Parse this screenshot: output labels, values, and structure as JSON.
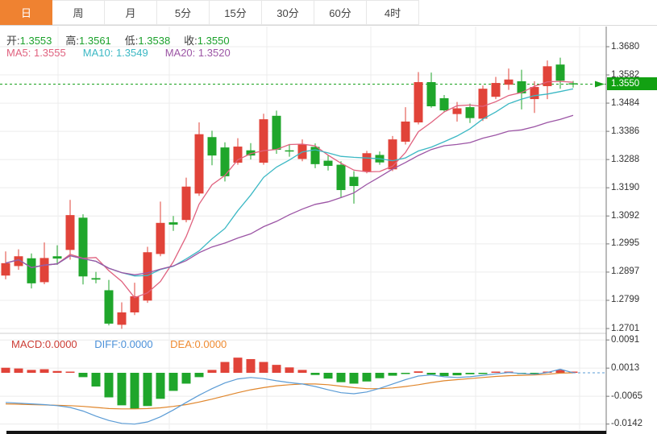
{
  "tabs": {
    "items": [
      {
        "label": "日",
        "active": true
      },
      {
        "label": "周",
        "active": false
      },
      {
        "label": "月",
        "active": false
      },
      {
        "label": "5分",
        "active": false
      },
      {
        "label": "15分",
        "active": false
      },
      {
        "label": "30分",
        "active": false
      },
      {
        "label": "60分",
        "active": false
      },
      {
        "label": "4时",
        "active": false
      }
    ]
  },
  "info_bar": {
    "open_label": "开:",
    "open": "1.3553",
    "high_label": "高:",
    "high": "1.3561",
    "low_label": "低:",
    "low": "1.3538",
    "close_label": "收:",
    "close": "1.3550",
    "ma5_label": "MA5:",
    "ma5": "1.3555",
    "ma10_label": "MA10:",
    "ma10": "1.3549",
    "ma20_label": "MA20:",
    "ma20": "1.3520"
  },
  "macd_bar": {
    "macd_label": "MACD:",
    "macd": "0.0000",
    "diff_label": "DIFF:",
    "diff": "0.0000",
    "dea_label": "DEA:",
    "dea": "0.0000"
  },
  "axis": {
    "last_price_label": "1.3550"
  },
  "colors": {
    "up": "#e14339",
    "down": "#1fa62b",
    "doji_dash": "#1fa62b",
    "ma5": "#e0627f",
    "ma10": "#3bb8c4",
    "ma20": "#9c55a5",
    "diff_line": "#5a9bd5",
    "dea_line": "#e0862c",
    "macd_text": "#cc3c34",
    "diff_text": "#4a90d9",
    "dea_text": "#ef8b31",
    "tab_active": "#ef8231",
    "price_line": "#18a11c",
    "badge": "#12a112",
    "grid": "#ececec",
    "axis_line": "#777",
    "tick_text": "#333"
  },
  "chart_data": {
    "type": "candlestick_with_macd",
    "panels": [
      "price",
      "macd"
    ],
    "price_axis": {
      "max": 1.368,
      "min": 1.2701,
      "ticks": [
        1.368,
        1.3582,
        1.3484,
        1.3386,
        1.3288,
        1.319,
        1.3092,
        1.2995,
        1.2897,
        1.2799,
        1.2701
      ]
    },
    "last_price": 1.355,
    "current_bar": {
      "open": 1.3553,
      "high": 1.3561,
      "low": 1.3538,
      "close": 1.355
    },
    "ma": {
      "periods": [
        5,
        10,
        20
      ],
      "ma5": 1.3555,
      "ma10": 1.3549,
      "ma20": 1.352
    },
    "candles": [
      [
        1.2885,
        1.2969,
        1.2872,
        1.2928
      ],
      [
        1.2918,
        1.2976,
        1.2905,
        1.2952
      ],
      [
        1.2945,
        1.2962,
        1.284,
        1.2858
      ],
      [
        1.2862,
        1.3,
        1.2855,
        1.2946
      ],
      [
        1.2952,
        1.299,
        1.2922,
        1.2944
      ],
      [
        1.2974,
        1.3148,
        1.294,
        1.3095
      ],
      [
        1.3086,
        1.3098,
        1.2854,
        1.2882
      ],
      [
        1.2876,
        1.2898,
        1.2858,
        1.2871
      ],
      [
        1.2834,
        1.287,
        1.2712,
        1.2718
      ],
      [
        1.2714,
        1.2792,
        1.27,
        1.2757
      ],
      [
        1.2757,
        1.286,
        1.2748,
        1.2813
      ],
      [
        1.2798,
        1.2985,
        1.279,
        1.2966
      ],
      [
        1.296,
        1.3142,
        1.2952,
        1.3068
      ],
      [
        1.307,
        1.3092,
        1.304,
        1.3062
      ],
      [
        1.3078,
        1.3225,
        1.307,
        1.3194
      ],
      [
        1.317,
        1.3417,
        1.3162,
        1.3376
      ],
      [
        1.3366,
        1.3388,
        1.3268,
        1.3302
      ],
      [
        1.333,
        1.3348,
        1.3212,
        1.323
      ],
      [
        1.3277,
        1.3362,
        1.327,
        1.3333
      ],
      [
        1.332,
        1.3345,
        1.3288,
        1.3302
      ],
      [
        1.3277,
        1.3447,
        1.327,
        1.3428
      ],
      [
        1.344,
        1.3458,
        1.3308,
        1.3322
      ],
      [
        1.332,
        1.3342,
        1.3298,
        1.3316
      ],
      [
        1.329,
        1.3358,
        1.3282,
        1.334
      ],
      [
        1.3332,
        1.3344,
        1.3258,
        1.3272
      ],
      [
        1.3284,
        1.3302,
        1.325,
        1.3266
      ],
      [
        1.327,
        1.3282,
        1.3155,
        1.3182
      ],
      [
        1.3228,
        1.3248,
        1.3135,
        1.3196
      ],
      [
        1.3246,
        1.3318,
        1.324,
        1.331
      ],
      [
        1.3304,
        1.3316,
        1.327,
        1.3278
      ],
      [
        1.3254,
        1.337,
        1.3248,
        1.3358
      ],
      [
        1.335,
        1.347,
        1.334,
        1.342
      ],
      [
        1.3417,
        1.3592,
        1.341,
        1.3557
      ],
      [
        1.3557,
        1.359,
        1.3468,
        1.3473
      ],
      [
        1.3501,
        1.3512,
        1.3452,
        1.3459
      ],
      [
        1.3446,
        1.3488,
        1.342,
        1.3466
      ],
      [
        1.347,
        1.3482,
        1.3415,
        1.3432
      ],
      [
        1.343,
        1.3545,
        1.3422,
        1.3534
      ],
      [
        1.3506,
        1.3575,
        1.3498,
        1.3554
      ],
      [
        1.3548,
        1.3604,
        1.353,
        1.3566
      ],
      [
        1.356,
        1.36,
        1.3462,
        1.3518
      ],
      [
        1.3498,
        1.356,
        1.345,
        1.354
      ],
      [
        1.3543,
        1.3632,
        1.3498,
        1.3612
      ],
      [
        1.3618,
        1.3642,
        1.3534,
        1.3562
      ],
      [
        1.3553,
        1.3561,
        1.3538,
        1.355
      ]
    ],
    "macd": {
      "axis_ticks": [
        0.0091,
        0.0013,
        -0.0065,
        -0.0142
      ],
      "macd_value": 0.0,
      "diff_value": 0.0,
      "dea_value": 0.0,
      "hist": [
        0.0014,
        0.0012,
        0.0008,
        0.001,
        0.0005,
        0.0001,
        -0.0012,
        -0.0038,
        -0.0068,
        -0.009,
        -0.01,
        -0.0092,
        -0.0072,
        -0.005,
        -0.003,
        -0.0012,
        0.0008,
        0.003,
        0.0042,
        0.0038,
        0.003,
        0.0022,
        0.0015,
        0.0008,
        -0.0006,
        -0.0016,
        -0.0026,
        -0.003,
        -0.0024,
        -0.0015,
        -0.0008,
        -0.0003,
        0.0004,
        -0.0005,
        -0.0009,
        -0.0007,
        -0.0004,
        -0.0001,
        0.0001,
        0.0002,
        -0.0003,
        -0.0004,
        0.0001,
        0.0008,
        0.0
      ],
      "diff": [
        -0.0082,
        -0.0084,
        -0.0086,
        -0.0088,
        -0.0091,
        -0.0096,
        -0.0106,
        -0.012,
        -0.0132,
        -0.014,
        -0.0142,
        -0.0136,
        -0.0122,
        -0.0103,
        -0.0082,
        -0.0062,
        -0.0044,
        -0.0028,
        -0.0017,
        -0.0013,
        -0.0016,
        -0.0022,
        -0.0027,
        -0.0031,
        -0.0038,
        -0.0047,
        -0.0055,
        -0.0058,
        -0.0053,
        -0.0043,
        -0.0031,
        -0.0019,
        -0.0009,
        -0.0006,
        -0.0011,
        -0.0013,
        -0.0011,
        -0.0007,
        -0.0003,
        0.0001,
        -0.0002,
        -0.0004,
        0.0001,
        0.001,
        0.0
      ],
      "dea": [
        -0.0086,
        -0.0087,
        -0.0088,
        -0.0089,
        -0.009,
        -0.0091,
        -0.0093,
        -0.0096,
        -0.0099,
        -0.01,
        -0.01,
        -0.0099,
        -0.0097,
        -0.0093,
        -0.0088,
        -0.0081,
        -0.0073,
        -0.0064,
        -0.0055,
        -0.0047,
        -0.0041,
        -0.0036,
        -0.0033,
        -0.0031,
        -0.0031,
        -0.0033,
        -0.0037,
        -0.0041,
        -0.0044,
        -0.0044,
        -0.0042,
        -0.0038,
        -0.0033,
        -0.0027,
        -0.0022,
        -0.0019,
        -0.0016,
        -0.0013,
        -0.001,
        -0.0008,
        -0.0007,
        -0.0006,
        -0.0004,
        -0.0001,
        0.0
      ]
    }
  }
}
